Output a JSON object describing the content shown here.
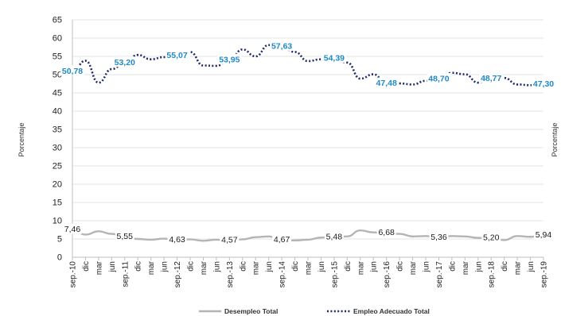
{
  "chart_data": {
    "type": "line",
    "y_axis_label_left": "Porcentaje",
    "y_axis_label_right": "Porcentaje",
    "ylim": [
      0,
      65
    ],
    "y_ticks": [
      0,
      5,
      10,
      15,
      20,
      25,
      30,
      35,
      40,
      45,
      50,
      55,
      60,
      65
    ],
    "grid": true,
    "legend_position": "bottom",
    "categories": [
      "sep.-10",
      "dic",
      "mar",
      "jun",
      "sep.-11",
      "dic",
      "mar",
      "jun",
      "sep.-12",
      "dic",
      "mar",
      "jun",
      "sep.-13",
      "dic",
      "mar",
      "jun",
      "sep.-14",
      "dic",
      "mar",
      "jun",
      "sep.-15",
      "dic",
      "mar",
      "jun",
      "sep.-16",
      "dic",
      "mar",
      "jun",
      "sep.-17",
      "dic",
      "mar",
      "jun",
      "sep.-18",
      "dic",
      "mar",
      "jun",
      "sep.-19"
    ],
    "series": [
      {
        "name": "Desempleo Total",
        "color": "#b4b4b4",
        "dash": "solid",
        "label_color": "#1a1a1a",
        "values": [
          7.46,
          6.2,
          7.1,
          6.4,
          5.55,
          5.0,
          4.8,
          5.1,
          4.63,
          4.9,
          4.5,
          4.8,
          4.57,
          4.9,
          5.5,
          5.7,
          4.67,
          4.6,
          4.8,
          5.4,
          5.48,
          5.7,
          7.35,
          6.8,
          6.68,
          6.4,
          5.7,
          5.8,
          5.36,
          5.8,
          5.7,
          5.3,
          5.2,
          4.7,
          5.8,
          5.6,
          5.94
        ],
        "labels": [
          {
            "index": 0,
            "text": "7,46"
          },
          {
            "index": 4,
            "text": "5,55"
          },
          {
            "index": 8,
            "text": "4,63"
          },
          {
            "index": 12,
            "text": "4,57"
          },
          {
            "index": 16,
            "text": "4,67"
          },
          {
            "index": 20,
            "text": "5,48"
          },
          {
            "index": 24,
            "text": "6,68"
          },
          {
            "index": 28,
            "text": "5,36"
          },
          {
            "index": 32,
            "text": "5,20"
          },
          {
            "index": 36,
            "text": "5,94"
          }
        ]
      },
      {
        "name": "Empleo Adecuado Total",
        "color": "#1f2a6b",
        "dash": "dotted",
        "label_color": "#1f8ac8",
        "values": [
          50.78,
          53.8,
          47.8,
          51.5,
          53.2,
          55.4,
          54.2,
          54.8,
          55.07,
          56.2,
          52.5,
          52.4,
          53.95,
          56.9,
          55.0,
          58.1,
          57.63,
          56.2,
          53.7,
          54.2,
          54.39,
          53.3,
          48.9,
          50.1,
          47.48,
          47.6,
          47.3,
          48.3,
          48.7,
          50.5,
          50.1,
          47.8,
          48.77,
          49.1,
          47.3,
          47.1,
          47.3
        ],
        "labels": [
          {
            "index": 0,
            "text": "50,78"
          },
          {
            "index": 4,
            "text": "53,20"
          },
          {
            "index": 8,
            "text": "55,07"
          },
          {
            "index": 12,
            "text": "53,95"
          },
          {
            "index": 16,
            "text": "57,63"
          },
          {
            "index": 20,
            "text": "54,39"
          },
          {
            "index": 24,
            "text": "47,48"
          },
          {
            "index": 28,
            "text": "48,70"
          },
          {
            "index": 32,
            "text": "48,77"
          },
          {
            "index": 36,
            "text": "47,30"
          }
        ]
      }
    ]
  }
}
